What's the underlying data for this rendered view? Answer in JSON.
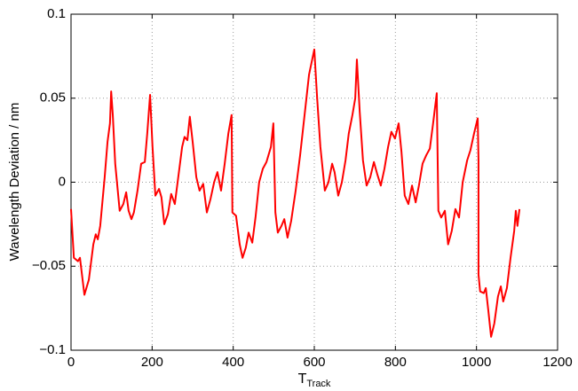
{
  "chart_data": {
    "type": "line",
    "xlabel": "T",
    "xlabel_subscript": "Track",
    "ylabel": "Wavelength Deviation / nm",
    "color": "#ff0000",
    "grid": true,
    "xlim": [
      0,
      1200
    ],
    "xticks": [
      0,
      200,
      400,
      600,
      800,
      1000,
      1200
    ],
    "ylim": [
      -0.1,
      0.1
    ],
    "yticks": [
      {
        "value": -0.1,
        "label": "−0.1"
      },
      {
        "value": -0.05,
        "label": "−0.05"
      },
      0,
      0.05,
      0.1
    ],
    "x": [
      0,
      7,
      17,
      22,
      33,
      44,
      55,
      61,
      66,
      72,
      83,
      90,
      96,
      99,
      103,
      109,
      120,
      129,
      136,
      142,
      149,
      155,
      164,
      173,
      182,
      188,
      195,
      201,
      208,
      217,
      223,
      230,
      239,
      247,
      256,
      265,
      274,
      280,
      287,
      293,
      300,
      309,
      317,
      326,
      335,
      344,
      353,
      361,
      370,
      379,
      388,
      396,
      398,
      407,
      416,
      423,
      431,
      438,
      447,
      455,
      464,
      473,
      482,
      493,
      499,
      504,
      510,
      519,
      526,
      534,
      543,
      554,
      565,
      576,
      587,
      600,
      607,
      615,
      626,
      635,
      644,
      650,
      659,
      668,
      677,
      685,
      694,
      701,
      705,
      712,
      720,
      729,
      738,
      747,
      755,
      764,
      773,
      782,
      790,
      799,
      808,
      815,
      823,
      832,
      841,
      850,
      858,
      867,
      876,
      885,
      893,
      902,
      906,
      913,
      922,
      930,
      939,
      948,
      957,
      966,
      977,
      985,
      994,
      1003,
      1005,
      1005,
      1009,
      1018,
      1023,
      1029,
      1036,
      1044,
      1053,
      1060,
      1066,
      1075,
      1084,
      1093,
      1097,
      1101,
      1106
    ],
    "values": [
      -0.016,
      -0.045,
      -0.047,
      -0.045,
      -0.067,
      -0.058,
      -0.037,
      -0.031,
      -0.034,
      -0.026,
      0.003,
      0.024,
      0.035,
      0.054,
      0.04,
      0.011,
      -0.017,
      -0.013,
      -0.006,
      -0.017,
      -0.022,
      -0.018,
      -0.005,
      0.011,
      0.012,
      0.029,
      0.052,
      0.021,
      -0.008,
      -0.004,
      -0.009,
      -0.025,
      -0.019,
      -0.007,
      -0.013,
      0.004,
      0.021,
      0.027,
      0.025,
      0.039,
      0.024,
      0.003,
      -0.005,
      -0.001,
      -0.018,
      -0.01,
      0.0,
      0.006,
      -0.005,
      0.011,
      0.029,
      0.04,
      -0.018,
      -0.02,
      -0.037,
      -0.045,
      -0.039,
      -0.03,
      -0.036,
      -0.021,
      0.0,
      0.008,
      0.012,
      0.021,
      0.035,
      -0.018,
      -0.03,
      -0.026,
      -0.022,
      -0.033,
      -0.023,
      -0.005,
      0.016,
      0.04,
      0.064,
      0.079,
      0.05,
      0.021,
      -0.005,
      0.0,
      0.011,
      0.006,
      -0.008,
      0.0,
      0.013,
      0.029,
      0.04,
      0.05,
      0.073,
      0.042,
      0.013,
      -0.002,
      0.003,
      0.012,
      0.005,
      -0.002,
      0.008,
      0.021,
      0.03,
      0.026,
      0.035,
      0.018,
      -0.008,
      -0.013,
      -0.002,
      -0.012,
      -0.002,
      0.011,
      0.016,
      0.02,
      0.035,
      0.053,
      -0.017,
      -0.021,
      -0.017,
      -0.037,
      -0.029,
      -0.016,
      -0.021,
      0.0,
      0.013,
      0.019,
      0.029,
      0.038,
      0.013,
      -0.055,
      -0.065,
      -0.066,
      -0.063,
      -0.076,
      -0.092,
      -0.084,
      -0.068,
      -0.062,
      -0.071,
      -0.063,
      -0.045,
      -0.029,
      -0.017,
      -0.026,
      -0.016
    ]
  }
}
